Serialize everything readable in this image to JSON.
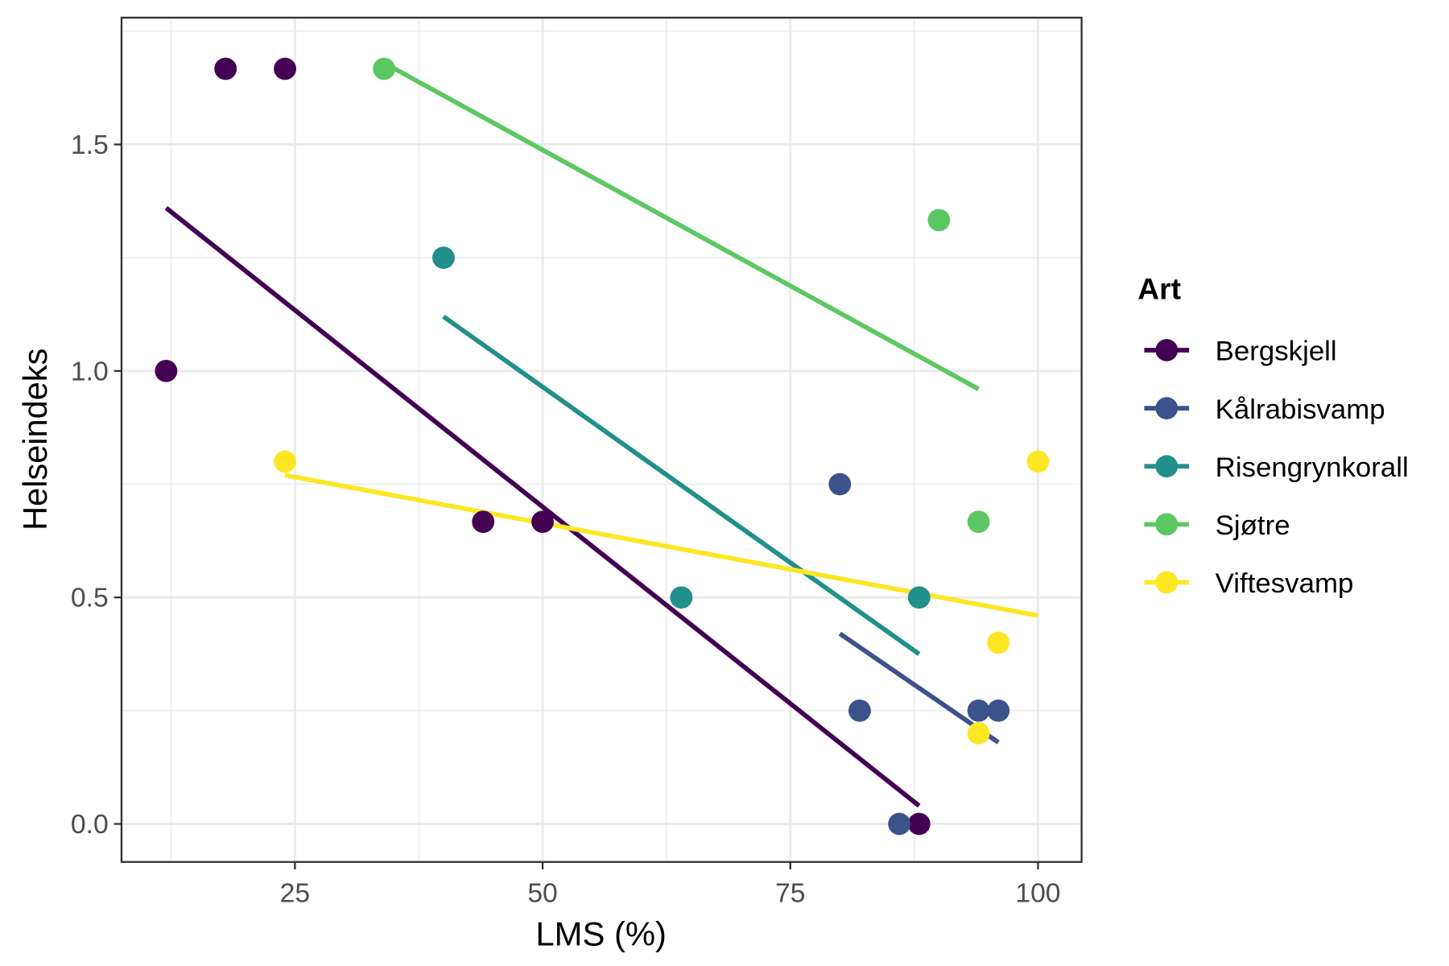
{
  "chart_data": {
    "type": "scatter",
    "title": "",
    "xlabel": "LMS (%)",
    "ylabel": "Helseindeks",
    "xlim": [
      7.5,
      104.4
    ],
    "ylim": [
      -0.084,
      1.78
    ],
    "x_ticks": [
      25,
      50,
      75,
      100
    ],
    "x_tick_labels": [
      "25",
      "50",
      "75",
      "100"
    ],
    "y_ticks": [
      0,
      0.5,
      1.0,
      1.5
    ],
    "y_tick_labels": [
      "0.0",
      "0.5",
      "1.0",
      "1.5"
    ],
    "x_minor_ticks": [
      12.5,
      37.5,
      62.5,
      87.5
    ],
    "y_minor_ticks": [
      0.25,
      0.75,
      1.25,
      1.75
    ],
    "grid": true,
    "legend": {
      "title": "Art",
      "position": "right"
    },
    "series": [
      {
        "name": "Bergskjell",
        "color": "#440154",
        "points": [
          [
            12,
            1.0
          ],
          [
            18,
            1.667
          ],
          [
            24,
            1.667
          ],
          [
            44,
            0.667
          ],
          [
            50,
            0.667
          ],
          [
            88,
            0.0
          ]
        ],
        "trend": [
          [
            12,
            1.36
          ],
          [
            88,
            0.04
          ]
        ]
      },
      {
        "name": "Kålrabisvamp",
        "color": "#3B528B",
        "points": [
          [
            80,
            0.75
          ],
          [
            82,
            0.25
          ],
          [
            86,
            0.0
          ],
          [
            94,
            0.25
          ],
          [
            96,
            0.25
          ]
        ],
        "trend": [
          [
            80,
            0.42
          ],
          [
            96,
            0.18
          ]
        ]
      },
      {
        "name": "Risengrynkorall",
        "color": "#21908C",
        "points": [
          [
            40,
            1.25
          ],
          [
            64,
            0.5
          ],
          [
            88,
            0.5
          ]
        ],
        "trend": [
          [
            40,
            1.12
          ],
          [
            88,
            0.375
          ]
        ]
      },
      {
        "name": "Sjøtre",
        "color": "#5DC863",
        "points": [
          [
            34,
            1.667
          ],
          [
            90,
            1.333
          ],
          [
            94,
            0.667
          ]
        ],
        "trend": [
          [
            34,
            1.68
          ],
          [
            94,
            0.96
          ]
        ]
      },
      {
        "name": "Viftesvamp",
        "color": "#FDE725",
        "points": [
          [
            24,
            0.8
          ],
          [
            94,
            0.2
          ],
          [
            96,
            0.4
          ],
          [
            100,
            0.8
          ]
        ],
        "trend": [
          [
            24,
            0.77
          ],
          [
            100,
            0.46
          ]
        ]
      }
    ]
  }
}
